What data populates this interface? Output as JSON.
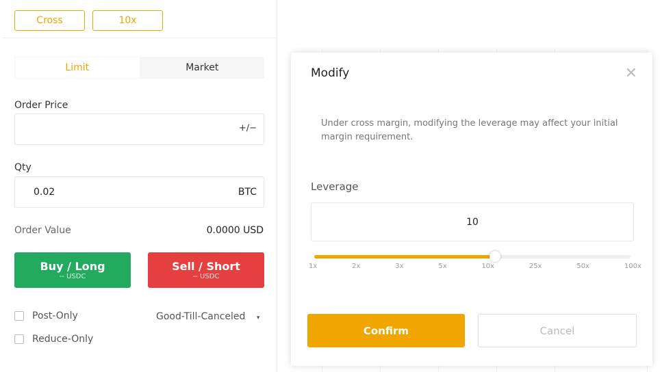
{
  "margin_mode": "Cross",
  "leverage_button": "10x",
  "order_tabs": [
    {
      "label": "Limit",
      "active": true
    },
    {
      "label": "Market",
      "active": false
    }
  ],
  "order_price": {
    "label": "Order Price",
    "value": "",
    "icon": "plus-minus-icon",
    "icon_glyph": "+∕−"
  },
  "qty": {
    "label": "Qty",
    "value": "0.02",
    "unit": "BTC"
  },
  "order_value": {
    "label": "Order Value",
    "value": "0.0000 USD"
  },
  "buy": {
    "label": "Buy / Long",
    "sub": "-- USDC",
    "color": "#22ab5f"
  },
  "sell": {
    "label": "Sell / Short",
    "sub": "-- USDC",
    "color": "#e5403f"
  },
  "post_only": "Post-Only",
  "reduce_only": "Reduce-Only",
  "time_in_force": {
    "value": "Good-Till-Canceled",
    "caret": "▾"
  },
  "modal": {
    "title": "Modify",
    "close": "✕",
    "description": "Under cross margin, modifying the leverage may affect your initial margin requirement.",
    "leverage_label": "Leverage",
    "leverage_value": "10",
    "slider_ticks": [
      "1x",
      "2x",
      "3x",
      "5x",
      "10x",
      "25x",
      "50x",
      "100x"
    ],
    "slider_selected_index": 4,
    "confirm": "Confirm",
    "cancel": "Cancel"
  },
  "accent": "#f0a500"
}
